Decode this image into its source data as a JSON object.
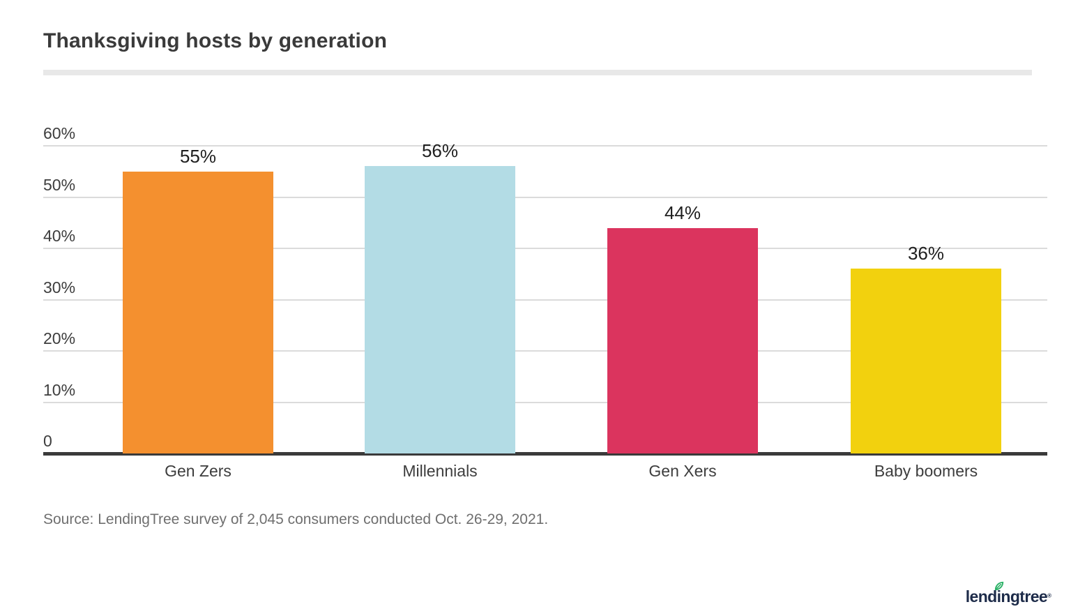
{
  "header": {
    "title": "Thanksgiving hosts by generation"
  },
  "chart_data": {
    "type": "bar",
    "title": "Thanksgiving hosts by generation",
    "categories": [
      "Gen Zers",
      "Millennials",
      "Gen Xers",
      "Baby boomers"
    ],
    "values": [
      55,
      56,
      44,
      36
    ],
    "value_labels": [
      "55%",
      "56%",
      "44%",
      "36%"
    ],
    "bar_colors": [
      "#F4902F",
      "#B3DCE5",
      "#DB345E",
      "#F2D10E"
    ],
    "xlabel": "",
    "ylabel": "",
    "ylim": [
      0,
      60
    ],
    "yticks": [
      {
        "value": 0,
        "label": "0"
      },
      {
        "value": 10,
        "label": "10%"
      },
      {
        "value": 20,
        "label": "20%"
      },
      {
        "value": 30,
        "label": "30%"
      },
      {
        "value": 40,
        "label": "40%"
      },
      {
        "value": 50,
        "label": "50%"
      },
      {
        "value": 60,
        "label": "60%"
      }
    ],
    "grid": "horizontal",
    "legend": "none",
    "colors": {
      "gridline": "#dbdbdb",
      "baseline": "#3a3a3a",
      "tick_text": "#3d3d3d",
      "value_text": "#1f1f1f"
    }
  },
  "footer": {
    "source": "Source: LendingTree survey of 2,045 consumers conducted Oct. 26-29, 2021."
  },
  "branding": {
    "logo_text": "lendingtree",
    "registered_mark": "®",
    "logo_color": "#1d2b49",
    "leaf_color": "#2db268"
  }
}
